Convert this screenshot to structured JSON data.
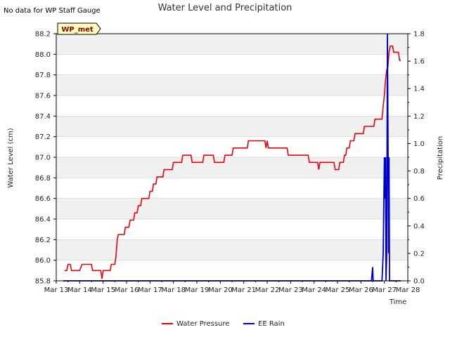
{
  "chart_data": {
    "type": "line",
    "title": "Water Level and Precipitation",
    "note": "No data for WP Staff Gauge",
    "badge": "WP_met",
    "xlabel": "Time",
    "ylabel": "Water Level (cm)",
    "y2label": "Precipitation",
    "xlim": [
      13,
      28
    ],
    "ylim": [
      85.8,
      88.2
    ],
    "y2lim": [
      0.0,
      1.8
    ],
    "x_ticks": [
      13,
      14,
      15,
      16,
      17,
      18,
      19,
      20,
      21,
      22,
      23,
      24,
      25,
      26,
      27,
      28
    ],
    "x_tick_labels": [
      "Mar 13",
      "Mar 14",
      "Mar 15",
      "Mar 16",
      "Mar 17",
      "Mar 18",
      "Mar 19",
      "Mar 20",
      "Mar 21",
      "Mar 22",
      "Mar 23",
      "Mar 24",
      "Mar 25",
      "Mar 26",
      "Mar 27",
      "Mar 28"
    ],
    "y_ticks": [
      85.8,
      86.0,
      86.2,
      86.4,
      86.6,
      86.8,
      87.0,
      87.2,
      87.4,
      87.6,
      87.8,
      88.0,
      88.2
    ],
    "y_tick_labels": [
      "85.8",
      "86.0",
      "86.2",
      "86.4",
      "86.6",
      "86.8",
      "87.0",
      "87.2",
      "87.4",
      "87.6",
      "87.8",
      "88.0",
      "88.2"
    ],
    "y2_ticks": [
      0.0,
      0.2,
      0.4,
      0.6,
      0.8,
      1.0,
      1.2,
      1.4,
      1.6,
      1.8
    ],
    "y2_tick_labels": [
      "0.0",
      "0.2",
      "0.4",
      "0.6",
      "0.8",
      "1.0",
      "1.2",
      "1.4",
      "1.6",
      "1.8"
    ],
    "grid": "horizontal bands",
    "legend_placement": "bottom-center",
    "series": [
      {
        "name": "Water Pressure",
        "axis": "left",
        "color": "#e8000b",
        "points": [
          [
            13.35,
            85.9
          ],
          [
            13.45,
            85.9
          ],
          [
            13.5,
            85.96
          ],
          [
            13.6,
            85.96
          ],
          [
            13.65,
            85.9
          ],
          [
            14.0,
            85.9
          ],
          [
            14.1,
            85.96
          ],
          [
            14.5,
            85.96
          ],
          [
            14.55,
            85.9
          ],
          [
            14.9,
            85.9
          ],
          [
            14.95,
            85.82
          ],
          [
            15.0,
            85.9
          ],
          [
            15.3,
            85.9
          ],
          [
            15.35,
            85.96
          ],
          [
            15.5,
            85.96
          ],
          [
            15.55,
            86.04
          ],
          [
            15.6,
            86.2
          ],
          [
            15.65,
            86.25
          ],
          [
            15.9,
            86.25
          ],
          [
            15.95,
            86.32
          ],
          [
            16.1,
            86.32
          ],
          [
            16.15,
            86.39
          ],
          [
            16.3,
            86.39
          ],
          [
            16.35,
            86.46
          ],
          [
            16.45,
            86.46
          ],
          [
            16.5,
            86.53
          ],
          [
            16.6,
            86.53
          ],
          [
            16.65,
            86.6
          ],
          [
            16.95,
            86.6
          ],
          [
            17.0,
            86.67
          ],
          [
            17.1,
            86.67
          ],
          [
            17.15,
            86.74
          ],
          [
            17.25,
            86.74
          ],
          [
            17.3,
            86.81
          ],
          [
            17.55,
            86.81
          ],
          [
            17.6,
            86.88
          ],
          [
            17.95,
            86.88
          ],
          [
            18.0,
            86.95
          ],
          [
            18.35,
            86.95
          ],
          [
            18.4,
            87.02
          ],
          [
            18.75,
            87.02
          ],
          [
            18.8,
            86.95
          ],
          [
            19.25,
            86.95
          ],
          [
            19.3,
            87.02
          ],
          [
            19.7,
            87.02
          ],
          [
            19.75,
            86.95
          ],
          [
            20.15,
            86.95
          ],
          [
            20.2,
            87.02
          ],
          [
            20.5,
            87.02
          ],
          [
            20.55,
            87.09
          ],
          [
            21.15,
            87.09
          ],
          [
            21.2,
            87.16
          ],
          [
            21.9,
            87.16
          ],
          [
            21.95,
            87.09
          ],
          [
            22.0,
            87.16
          ],
          [
            22.05,
            87.09
          ],
          [
            22.85,
            87.09
          ],
          [
            22.9,
            87.02
          ],
          [
            23.75,
            87.02
          ],
          [
            23.8,
            86.95
          ],
          [
            24.15,
            86.95
          ],
          [
            24.2,
            86.88
          ],
          [
            24.25,
            86.95
          ],
          [
            24.85,
            86.95
          ],
          [
            24.9,
            86.88
          ],
          [
            25.05,
            86.88
          ],
          [
            25.1,
            86.95
          ],
          [
            25.25,
            86.95
          ],
          [
            25.3,
            87.02
          ],
          [
            25.35,
            87.02
          ],
          [
            25.4,
            87.09
          ],
          [
            25.5,
            87.09
          ],
          [
            25.55,
            87.16
          ],
          [
            25.7,
            87.16
          ],
          [
            25.75,
            87.23
          ],
          [
            26.1,
            87.23
          ],
          [
            26.15,
            87.3
          ],
          [
            26.55,
            87.3
          ],
          [
            26.6,
            87.37
          ],
          [
            26.9,
            87.37
          ],
          [
            26.95,
            87.5
          ],
          [
            27.0,
            87.6
          ],
          [
            27.05,
            87.75
          ],
          [
            27.1,
            87.85
          ],
          [
            27.15,
            87.88
          ],
          [
            27.2,
            88.02
          ],
          [
            27.25,
            88.08
          ],
          [
            27.35,
            88.08
          ],
          [
            27.4,
            88.02
          ],
          [
            27.6,
            88.02
          ],
          [
            27.65,
            87.94
          ],
          [
            27.7,
            87.94
          ]
        ]
      },
      {
        "name": "EE Rain",
        "axis": "right",
        "color": "#0000cc",
        "points": [
          [
            13.3,
            0.0
          ],
          [
            26.45,
            0.0
          ],
          [
            26.5,
            0.1
          ],
          [
            26.52,
            0.0
          ],
          [
            26.9,
            0.0
          ],
          [
            26.95,
            0.2
          ],
          [
            27.0,
            0.9
          ],
          [
            27.02,
            0.6
          ],
          [
            27.05,
            0.9
          ],
          [
            27.07,
            0.0
          ],
          [
            27.1,
            0.2
          ],
          [
            27.13,
            1.8
          ],
          [
            27.16,
            0.9
          ],
          [
            27.18,
            0.2
          ],
          [
            27.2,
            0.9
          ],
          [
            27.22,
            0.0
          ],
          [
            27.25,
            0.0
          ],
          [
            27.5,
            0.0
          ],
          [
            27.7,
            0.0
          ]
        ]
      }
    ]
  }
}
